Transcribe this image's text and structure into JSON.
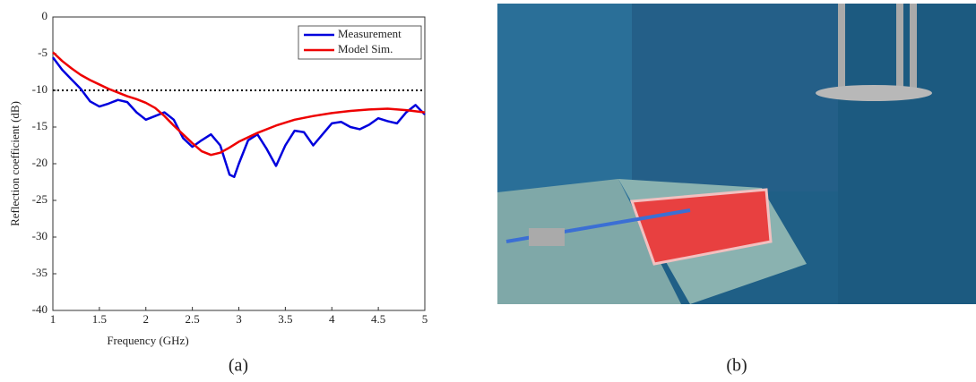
{
  "chart_data": {
    "type": "line",
    "xlabel": "Frequency (GHz)",
    "ylabel": "Reflection coefficient (dB)",
    "xlim": [
      1,
      5
    ],
    "ylim": [
      -40,
      0
    ],
    "xticks": [
      1,
      1.5,
      2,
      2.5,
      3,
      3.5,
      4,
      4.5,
      5
    ],
    "yticks": [
      0,
      -5,
      -10,
      -15,
      -20,
      -25,
      -30,
      -35,
      -40
    ],
    "grid": false,
    "legend": "upper right",
    "reference_line": {
      "value": -10,
      "color": "#000000",
      "style": "dotted"
    },
    "series": [
      {
        "name": "Measurement",
        "color": "#0000dd",
        "x": [
          1.0,
          1.1,
          1.2,
          1.3,
          1.4,
          1.5,
          1.6,
          1.7,
          1.8,
          1.9,
          2.0,
          2.1,
          2.2,
          2.3,
          2.4,
          2.5,
          2.6,
          2.7,
          2.8,
          2.9,
          2.95,
          3.0,
          3.1,
          3.2,
          3.3,
          3.4,
          3.5,
          3.6,
          3.7,
          3.8,
          3.9,
          4.0,
          4.1,
          4.2,
          4.3,
          4.4,
          4.5,
          4.6,
          4.7,
          4.8,
          4.9,
          5.0
        ],
        "values": [
          -5.5,
          -7.2,
          -8.5,
          -9.8,
          -11.5,
          -12.2,
          -11.8,
          -11.3,
          -11.6,
          -13,
          -14,
          -13.5,
          -13,
          -14,
          -16.5,
          -17.7,
          -16.8,
          -16,
          -17.5,
          -21.5,
          -21.8,
          -20,
          -16.8,
          -16,
          -18,
          -20.3,
          -17.5,
          -15.5,
          -15.7,
          -17.5,
          -16,
          -14.5,
          -14.3,
          -15,
          -15.3,
          -14.7,
          -13.8,
          -14.2,
          -14.5,
          -13,
          -12,
          -13.3
        ]
      },
      {
        "name": "Model Sim.",
        "color": "#ee0000",
        "x": [
          1.0,
          1.1,
          1.2,
          1.3,
          1.4,
          1.5,
          1.6,
          1.7,
          1.8,
          1.9,
          2.0,
          2.1,
          2.2,
          2.3,
          2.4,
          2.5,
          2.6,
          2.7,
          2.8,
          2.9,
          3.0,
          3.2,
          3.4,
          3.6,
          3.8,
          4.0,
          4.2,
          4.4,
          4.6,
          4.8,
          5.0
        ],
        "values": [
          -4.8,
          -6,
          -7,
          -7.9,
          -8.6,
          -9.2,
          -9.8,
          -10.3,
          -10.8,
          -11.2,
          -11.7,
          -12.4,
          -13.5,
          -14.8,
          -16,
          -17.2,
          -18.3,
          -18.8,
          -18.5,
          -17.8,
          -17,
          -15.8,
          -14.8,
          -14,
          -13.5,
          -13.1,
          -12.8,
          -12.6,
          -12.5,
          -12.7,
          -13
        ]
      }
    ]
  },
  "panels": [
    "(a)",
    "(b)"
  ]
}
